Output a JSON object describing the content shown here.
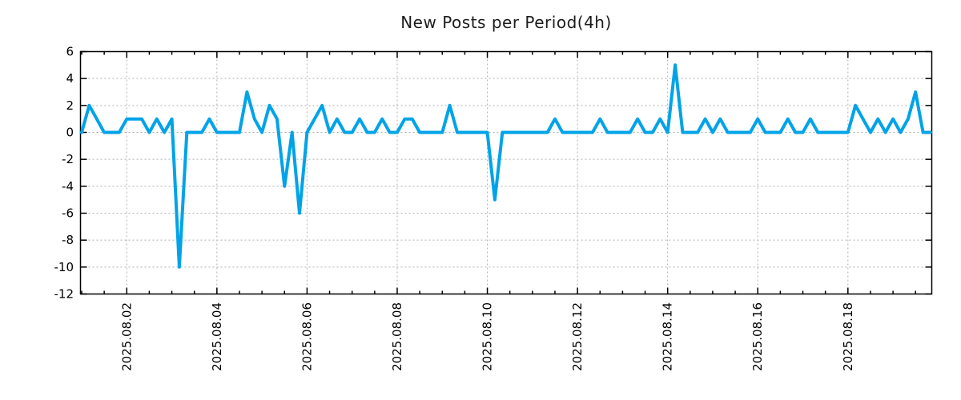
{
  "chart_data": {
    "type": "line",
    "title": "New Posts per Period(4h)",
    "period_hours": 4,
    "x_start": "2025.08.01 00:00",
    "line_color": "#00a3e8",
    "grid_color": "#b0b0b0",
    "border_color": "#000000",
    "background": "#ffffff",
    "grid": true,
    "legend": "none",
    "ylim": [
      -12,
      6
    ],
    "y_ticks": [
      6,
      4,
      2,
      0,
      -2,
      -4,
      -6,
      -8,
      -10,
      -12
    ],
    "x_tick_labels": [
      "2025.08.02",
      "2025.08.04",
      "2025.08.06",
      "2025.08.08",
      "2025.08.10",
      "2025.08.12",
      "2025.08.14",
      "2025.08.16",
      "2025.08.18"
    ],
    "x_tick_indices": [
      6,
      18,
      30,
      42,
      54,
      66,
      78,
      90,
      102
    ],
    "minor_tick_every": 3,
    "values": [
      0,
      2,
      1,
      0,
      0,
      0,
      1,
      1,
      1,
      0,
      1,
      0,
      1,
      -10,
      0,
      0,
      0,
      1,
      0,
      0,
      0,
      0,
      3,
      1,
      0,
      2,
      1,
      -4,
      0,
      -6,
      0,
      1,
      2,
      0,
      1,
      0,
      0,
      1,
      0,
      0,
      1,
      0,
      0,
      1,
      1,
      0,
      0,
      0,
      0,
      2,
      0,
      0,
      0,
      0,
      0,
      -5,
      0,
      0,
      0,
      0,
      0,
      0,
      0,
      1,
      0,
      0,
      0,
      0,
      0,
      1,
      0,
      0,
      0,
      0,
      1,
      0,
      0,
      1,
      0,
      5,
      0,
      0,
      0,
      1,
      0,
      1,
      0,
      0,
      0,
      0,
      1,
      0,
      0,
      0,
      1,
      0,
      0,
      1,
      0,
      0,
      0,
      0,
      0,
      2,
      1,
      0,
      1,
      0,
      1,
      0,
      1,
      3,
      0,
      0
    ]
  }
}
